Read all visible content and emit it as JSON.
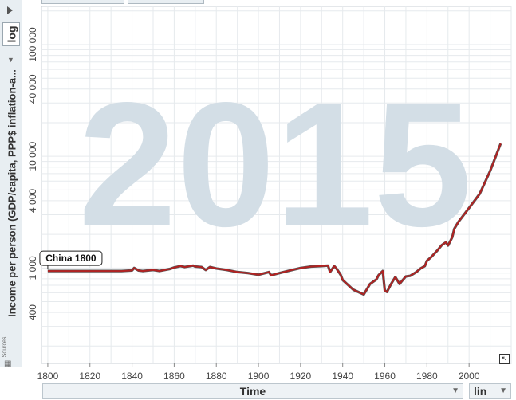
{
  "scale_toggle_label": "log",
  "x_selector_label": "lin",
  "sources_label": "Sources",
  "chart_data": {
    "type": "line",
    "title": "",
    "watermark_year": "2015",
    "xlabel": "Time",
    "ylabel": "Income per person (GDP/capita, PPP$ inflation-a...",
    "y_scale": "log",
    "xlim": [
      1797,
      2020
    ],
    "ylim": [
      140,
      220000
    ],
    "x_ticks": [
      1800,
      1820,
      1840,
      1860,
      1880,
      1900,
      1920,
      1940,
      1960,
      1980,
      2000
    ],
    "y_ticks": [
      {
        "value": 400,
        "label": "400"
      },
      {
        "value": 1000,
        "label": "1 000"
      },
      {
        "value": 4000,
        "label": "4 000"
      },
      {
        "value": 10000,
        "label": "10 000"
      },
      {
        "value": 40000,
        "label": "40 000"
      },
      {
        "value": 100000,
        "label": "100 000"
      }
    ],
    "series": [
      {
        "name": "China",
        "color": "#b22222",
        "x": [
          1800,
          1835,
          1840,
          1841,
          1843,
          1845,
          1850,
          1853,
          1858,
          1860,
          1863,
          1865,
          1869,
          1870,
          1873,
          1875,
          1877,
          1880,
          1885,
          1890,
          1895,
          1900,
          1905,
          1906,
          1910,
          1915,
          1920,
          1925,
          1930,
          1933,
          1934,
          1936,
          1937,
          1939,
          1940,
          1945,
          1950,
          1953,
          1956,
          1957,
          1959,
          1960,
          1961,
          1963,
          1965,
          1967,
          1968,
          1970,
          1972,
          1975,
          1977,
          1979,
          1980,
          1982,
          1985,
          1987,
          1989,
          1990,
          1992,
          1993,
          1995,
          2000,
          2005,
          2010,
          2015
        ],
        "y": [
          940,
          940,
          950,
          1000,
          950,
          940,
          960,
          940,
          980,
          1010,
          1040,
          1020,
          1050,
          1030,
          1020,
          960,
          1020,
          990,
          960,
          920,
          900,
          870,
          920,
          860,
          900,
          950,
          1000,
          1030,
          1040,
          1050,
          920,
          1040,
          990,
          870,
          780,
          640,
          580,
          720,
          790,
          860,
          940,
          630,
          610,
          720,
          830,
          720,
          760,
          840,
          850,
          920,
          990,
          1040,
          1160,
          1250,
          1440,
          1600,
          1700,
          1590,
          1880,
          2250,
          2600,
          3450,
          4600,
          7400,
          13000
        ]
      }
    ],
    "annotation": {
      "label": "China 1800",
      "x": 1800,
      "y": 940
    },
    "grid": true,
    "legend": "none"
  }
}
